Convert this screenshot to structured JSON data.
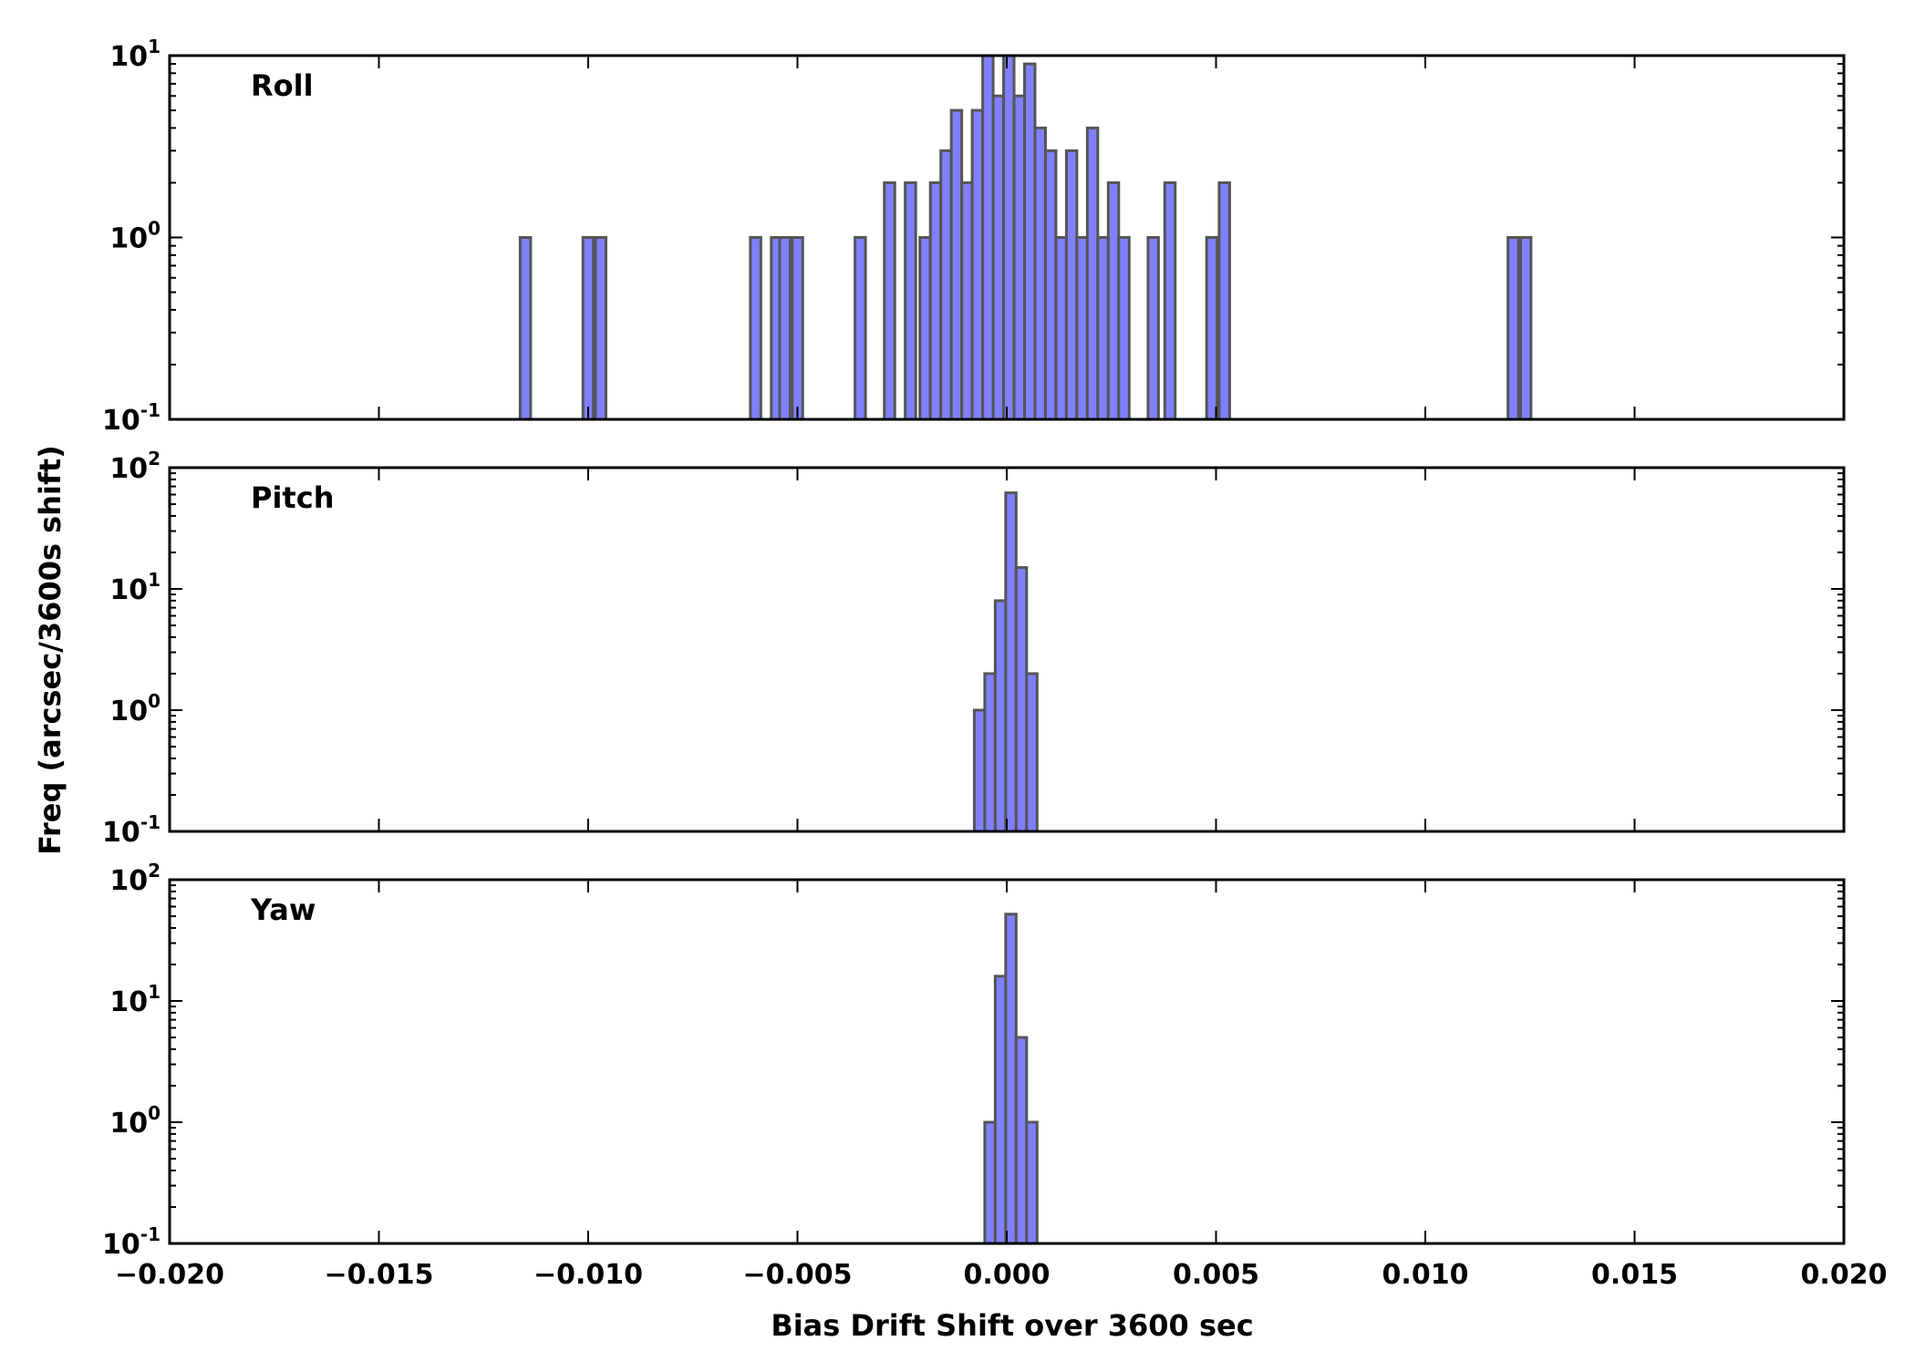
{
  "chart_data": {
    "type": "histogram",
    "xlabel": "Bias Drift Shift over 3600 sec",
    "ylabel": "Freq (arcsec/3600s shift)",
    "xlim": [
      -0.02,
      0.02
    ],
    "x_ticks": [
      "−0.020",
      "−0.015",
      "−0.010",
      "−0.005",
      "0.000",
      "0.005",
      "0.010",
      "0.015",
      "0.020"
    ],
    "x_tick_values": [
      -0.02,
      -0.015,
      -0.01,
      -0.005,
      0.0,
      0.005,
      0.01,
      0.015,
      0.02
    ],
    "y_scale": "log",
    "grid": false,
    "bin_width": 0.00025,
    "panels": [
      {
        "name": "Roll",
        "ylim": [
          0.1,
          10
        ],
        "y_tick_exponents": [
          "1",
          "0",
          "-1"
        ],
        "bins": [
          {
            "x": -0.0115,
            "count": 1
          },
          {
            "x": -0.01,
            "count": 1
          },
          {
            "x": -0.0097,
            "count": 1
          },
          {
            "x": -0.006,
            "count": 1
          },
          {
            "x": -0.0055,
            "count": 1
          },
          {
            "x": -0.0053,
            "count": 1
          },
          {
            "x": -0.005,
            "count": 1
          },
          {
            "x": -0.0035,
            "count": 1
          },
          {
            "x": -0.0028,
            "count": 2
          },
          {
            "x": -0.0023,
            "count": 2
          },
          {
            "x": -0.00195,
            "count": 1
          },
          {
            "x": -0.0017,
            "count": 2
          },
          {
            "x": -0.00145,
            "count": 3
          },
          {
            "x": -0.0012,
            "count": 5
          },
          {
            "x": -0.00095,
            "count": 2
          },
          {
            "x": -0.0007,
            "count": 5
          },
          {
            "x": -0.00045,
            "count": 10
          },
          {
            "x": -0.0002,
            "count": 6
          },
          {
            "x": 5e-05,
            "count": 10
          },
          {
            "x": 0.0003,
            "count": 6
          },
          {
            "x": 0.00055,
            "count": 9
          },
          {
            "x": 0.0008,
            "count": 4
          },
          {
            "x": 0.00105,
            "count": 3
          },
          {
            "x": 0.0013,
            "count": 1
          },
          {
            "x": 0.00155,
            "count": 3
          },
          {
            "x": 0.0018,
            "count": 1
          },
          {
            "x": 0.00205,
            "count": 4
          },
          {
            "x": 0.0023,
            "count": 1
          },
          {
            "x": 0.00255,
            "count": 2
          },
          {
            "x": 0.0028,
            "count": 1
          },
          {
            "x": 0.0035,
            "count": 1
          },
          {
            "x": 0.0039,
            "count": 2
          },
          {
            "x": 0.0049,
            "count": 1
          },
          {
            "x": 0.0052,
            "count": 2
          },
          {
            "x": 0.0121,
            "count": 1
          },
          {
            "x": 0.0124,
            "count": 1
          }
        ]
      },
      {
        "name": "Pitch",
        "ylim": [
          0.1,
          100
        ],
        "y_tick_exponents": [
          "2",
          "1",
          "0",
          "-1"
        ],
        "bins": [
          {
            "x": -0.00065,
            "count": 1
          },
          {
            "x": -0.0004,
            "count": 2
          },
          {
            "x": -0.00015,
            "count": 8
          },
          {
            "x": 0.0001,
            "count": 62
          },
          {
            "x": 0.00035,
            "count": 15
          },
          {
            "x": 0.0006,
            "count": 2
          }
        ]
      },
      {
        "name": "Yaw",
        "ylim": [
          0.1,
          100
        ],
        "y_tick_exponents": [
          "2",
          "1",
          "0",
          "-1"
        ],
        "bins": [
          {
            "x": -0.0004,
            "count": 1
          },
          {
            "x": -0.00015,
            "count": 16
          },
          {
            "x": 0.0001,
            "count": 52
          },
          {
            "x": 0.00035,
            "count": 5
          },
          {
            "x": 0.0006,
            "count": 1
          }
        ]
      }
    ]
  }
}
